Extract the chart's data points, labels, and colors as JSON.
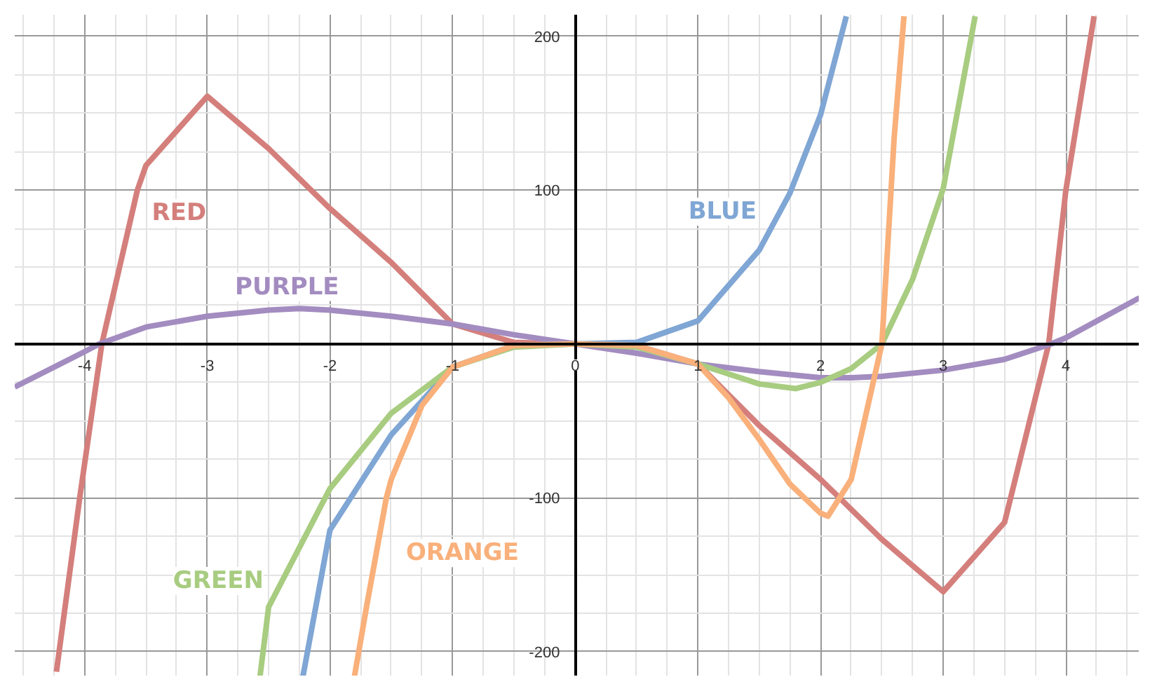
{
  "chart_data": {
    "type": "line",
    "xlim": [
      -4.57,
      4.6
    ],
    "ylim": [
      -216,
      214
    ],
    "xticks": [
      -4,
      -3,
      -2,
      -1,
      0,
      1,
      2,
      3,
      4
    ],
    "yticks": [
      -200,
      -100,
      {
        "value": 0,
        "label": null
      },
      100,
      200
    ],
    "grid": true,
    "marker": "none",
    "line_style": "solid",
    "series": [
      {
        "name": "RED",
        "color": "#d47f7c",
        "x": [
          -4.23,
          -4.04,
          -3.86,
          -3.57,
          -3.5,
          -3,
          -2.5,
          -2,
          -1.5,
          -1,
          -0.5,
          0,
          0.5,
          1,
          1.5,
          2,
          2.5,
          3,
          3.5,
          3.86,
          4,
          4.23
        ],
        "values": [
          -213,
          -100,
          0,
          100,
          116,
          161,
          127,
          88,
          53,
          13,
          1,
          0,
          -1,
          -13,
          -53,
          -88,
          -127,
          -161,
          -116,
          0,
          100,
          213
        ]
      },
      {
        "name": "PURPLE",
        "color": "#a38cc0",
        "x": [
          -4.57,
          -4,
          -3.88,
          -3.5,
          -3,
          -2.5,
          -2.25,
          -2,
          -1.5,
          -1,
          -0.5,
          0,
          0.5,
          1,
          1.5,
          2,
          2.25,
          2.5,
          3,
          3.5,
          3.88,
          4,
          4.6
        ],
        "values": [
          -28,
          -5,
          0,
          11,
          18,
          22,
          23,
          22,
          18,
          13,
          6,
          0,
          -6,
          -13,
          -18,
          -22,
          -22,
          -21,
          -17,
          -10,
          0,
          4,
          30
        ]
      },
      {
        "name": "BLUE",
        "color": "#7fa6d4",
        "x": [
          -2.22,
          -2,
          -1.75,
          -1.5,
          -1,
          -0.5,
          0,
          0.5,
          1,
          1.5,
          1.75,
          2,
          2.21
        ],
        "values": [
          -216,
          -121,
          -90,
          -59,
          -15,
          -1,
          0,
          1,
          15,
          61,
          98,
          149,
          213
        ]
      },
      {
        "name": "GREEN",
        "color": "#a8cc80",
        "x": [
          -2.57,
          -2.5,
          -2,
          -1.5,
          -1,
          -0.5,
          0,
          0.5,
          1,
          1.5,
          1.8,
          2,
          2.25,
          2.5,
          2.75,
          3,
          3.26
        ],
        "values": [
          -216,
          -171,
          -94,
          -45,
          -15,
          -2,
          0,
          -2,
          -13,
          -26,
          -29,
          -25,
          -16,
          0,
          42,
          101,
          213
        ]
      },
      {
        "name": "ORANGE",
        "color": "#f9b07a",
        "x": [
          -1.8,
          -1.7,
          -1.54,
          -1.5,
          -1.25,
          -1,
          -0.5,
          0,
          0.5,
          1,
          1.25,
          1.5,
          1.75,
          2,
          2.06,
          2.25,
          2.5,
          2.6,
          2.68
        ],
        "values": [
          -216,
          -170,
          -100,
          -88,
          -40,
          -15,
          -1,
          0,
          -1,
          -13,
          -35,
          -62,
          -91,
          -110,
          -112,
          -88,
          0,
          134,
          213
        ]
      }
    ]
  }
}
